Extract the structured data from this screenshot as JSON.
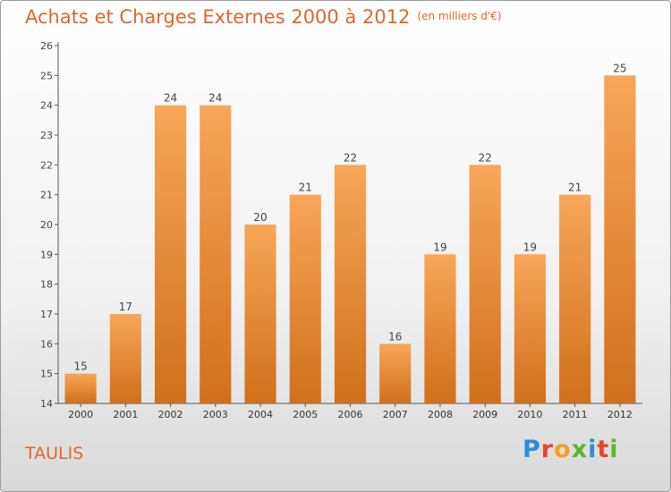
{
  "title": "Achats et Charges Externes 2000 à 2012",
  "unit_note": "(en milliers d'€)",
  "commune": "TAULIS",
  "logo": {
    "text": "Proxiti",
    "letters": [
      "P",
      "r",
      "o",
      "x",
      "i",
      "t",
      "i"
    ],
    "colors": [
      "#2a8fd6",
      "#e8452c",
      "#f2a020",
      "#5cb531",
      "#2a8fd6",
      "#e8452c",
      "#5cb531"
    ]
  },
  "chart_data": {
    "type": "bar",
    "categories": [
      "2000",
      "2001",
      "2002",
      "2003",
      "2004",
      "2005",
      "2006",
      "2007",
      "2008",
      "2009",
      "2010",
      "2011",
      "2012"
    ],
    "values": [
      15,
      17,
      24,
      24,
      20,
      21,
      22,
      16,
      19,
      22,
      19,
      21,
      25
    ],
    "ylim": [
      14,
      26
    ],
    "yticks": [
      14,
      15,
      16,
      17,
      18,
      19,
      20,
      21,
      22,
      23,
      24,
      25,
      26
    ],
    "grid": false,
    "bar_color_top": "#f8a659",
    "bar_color_bottom": "#d0701c",
    "accent_color": "#e0662a"
  }
}
